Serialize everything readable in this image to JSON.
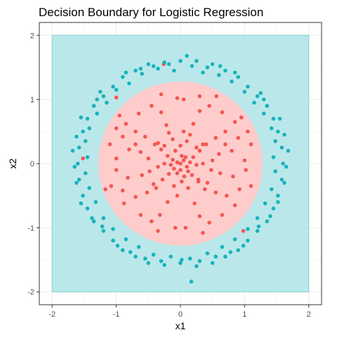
{
  "chart_data": {
    "type": "scatter",
    "title": "Decision Boundary for Logistic Regression",
    "xlabel": "x1",
    "ylabel": "x2",
    "xlim": [
      -2.2,
      2.2
    ],
    "ylim": [
      -2.2,
      2.2
    ],
    "x_ticks": [
      -2,
      -1,
      0,
      1,
      2
    ],
    "y_ticks": [
      -2,
      -1,
      0,
      1,
      2
    ],
    "x_tick_labels": [
      "-2",
      "-1",
      "0",
      "1",
      "2"
    ],
    "y_tick_labels": [
      "-2",
      "-1",
      "0",
      "1",
      "2"
    ],
    "grid": true,
    "legend": "none",
    "regions": [
      {
        "name": "class-0-region",
        "shape": "rectangle",
        "x": [
          -2,
          2
        ],
        "y": [
          -2,
          2
        ],
        "color": "#b2e5e8"
      },
      {
        "name": "class-1-region",
        "shape": "circle",
        "center": [
          0,
          0
        ],
        "radius": 1.28,
        "color": "#ffcccc"
      }
    ],
    "series": [
      {
        "color": "#f15854",
        "points": [
          [
            0.0,
            0.0
          ],
          [
            0.05,
            0.05
          ],
          [
            -0.05,
            0.02
          ],
          [
            0.1,
            -0.05
          ],
          [
            -0.1,
            -0.08
          ],
          [
            0.02,
            0.12
          ],
          [
            0.08,
            0.1
          ],
          [
            -0.12,
            0.06
          ],
          [
            0.15,
            0.02
          ],
          [
            -0.05,
            -0.15
          ],
          [
            0.0,
            -0.1
          ],
          [
            0.12,
            -0.12
          ],
          [
            -0.15,
            -0.02
          ],
          [
            0.2,
            0.1
          ],
          [
            -0.2,
            0.12
          ],
          [
            0.06,
            -0.2
          ],
          [
            -0.08,
            0.2
          ],
          [
            0.18,
            -0.18
          ],
          [
            -0.18,
            -0.16
          ],
          [
            0.25,
            -0.02
          ],
          [
            -0.25,
            0.0
          ],
          [
            0.0,
            0.28
          ],
          [
            0.02,
            -0.28
          ],
          [
            0.3,
            0.2
          ],
          [
            -0.3,
            0.22
          ],
          [
            0.28,
            -0.25
          ],
          [
            -0.28,
            -0.25
          ],
          [
            0.35,
            0.0
          ],
          [
            -0.35,
            -0.05
          ],
          [
            0.1,
            0.35
          ],
          [
            -0.12,
            0.38
          ],
          [
            0.12,
            -0.38
          ],
          [
            -0.1,
            -0.35
          ],
          [
            0.4,
            0.3
          ],
          [
            -0.4,
            0.3
          ],
          [
            0.42,
            -0.3
          ],
          [
            -0.42,
            -0.32
          ],
          [
            0.5,
            0.05
          ],
          [
            -0.5,
            0.08
          ],
          [
            0.05,
            0.5
          ],
          [
            -0.05,
            -0.5
          ],
          [
            0.55,
            0.4
          ],
          [
            -0.55,
            0.42
          ],
          [
            0.55,
            -0.45
          ],
          [
            -0.52,
            -0.45
          ],
          [
            0.6,
            0.15
          ],
          [
            -0.62,
            0.18
          ],
          [
            0.62,
            -0.15
          ],
          [
            -0.6,
            -0.18
          ],
          [
            0.2,
            0.62
          ],
          [
            -0.22,
            0.6
          ],
          [
            0.22,
            -0.62
          ],
          [
            -0.2,
            -0.6
          ],
          [
            0.7,
            0.5
          ],
          [
            -0.7,
            0.5
          ],
          [
            0.72,
            -0.5
          ],
          [
            -0.7,
            -0.52
          ],
          [
            0.8,
            0.2
          ],
          [
            -0.8,
            0.22
          ],
          [
            0.82,
            -0.2
          ],
          [
            -0.82,
            -0.22
          ],
          [
            0.3,
            0.82
          ],
          [
            -0.3,
            0.8
          ],
          [
            0.3,
            -0.82
          ],
          [
            -0.32,
            -0.8
          ],
          [
            0.9,
            0.4
          ],
          [
            -0.9,
            0.42
          ],
          [
            0.92,
            -0.4
          ],
          [
            -0.9,
            -0.42
          ],
          [
            0.45,
            0.9
          ],
          [
            -0.45,
            0.9
          ],
          [
            0.45,
            -0.92
          ],
          [
            -0.45,
            -0.9
          ],
          [
            1.0,
            0.05
          ],
          [
            -1.0,
            0.08
          ],
          [
            1.02,
            -0.1
          ],
          [
            -1.0,
            -0.1
          ],
          [
            0.05,
            1.0
          ],
          [
            -0.05,
            1.02
          ],
          [
            0.08,
            -1.0
          ],
          [
            -0.08,
            -1.0
          ],
          [
            0.65,
            0.8
          ],
          [
            -0.65,
            0.78
          ],
          [
            0.65,
            -0.8
          ],
          [
            -0.62,
            -0.8
          ],
          [
            0.85,
            0.65
          ],
          [
            -0.85,
            0.62
          ],
          [
            0.85,
            -0.65
          ],
          [
            -0.88,
            -0.62
          ],
          [
            1.1,
            0.3
          ],
          [
            -1.1,
            0.3
          ],
          [
            1.1,
            -0.35
          ],
          [
            -1.08,
            -0.35
          ],
          [
            0.3,
            1.05
          ],
          [
            -0.3,
            1.08
          ],
          [
            0.35,
            -1.08
          ],
          [
            -0.35,
            -1.05
          ],
          [
            0.7,
            0.3
          ],
          [
            -0.7,
            0.3
          ],
          [
            0.35,
            0.3
          ],
          [
            -0.35,
            0.32
          ],
          [
            0.38,
            -0.4
          ],
          [
            -0.38,
            -0.38
          ],
          [
            0.15,
            0.45
          ],
          [
            -0.18,
            0.48
          ],
          [
            0.48,
            -0.1
          ],
          [
            -0.48,
            -0.12
          ],
          [
            0.25,
            0.25
          ],
          [
            -0.25,
            0.28
          ],
          [
            0.28,
            -0.28
          ],
          [
            -1.17,
            -0.4
          ],
          [
            -1.52,
            0.08
          ],
          [
            -1.0,
            1.03
          ],
          [
            -0.26,
            1.55
          ],
          [
            0.98,
            -1.05
          ],
          [
            0.56,
            1.05
          ],
          [
            0.95,
            0.72
          ],
          [
            1.05,
            0.5
          ],
          [
            -0.95,
            0.75
          ],
          [
            -1.0,
            0.55
          ]
        ]
      },
      {
        "color": "#1ab3bc",
        "points": [
          [
            0.0,
            1.6
          ],
          [
            0.25,
            1.6
          ],
          [
            -0.25,
            1.58
          ],
          [
            0.5,
            1.55
          ],
          [
            -0.5,
            1.55
          ],
          [
            0.7,
            1.45
          ],
          [
            -0.7,
            1.45
          ],
          [
            0.9,
            1.35
          ],
          [
            -0.9,
            1.35
          ],
          [
            1.05,
            1.2
          ],
          [
            -1.05,
            1.2
          ],
          [
            1.2,
            1.05
          ],
          [
            -1.2,
            1.05
          ],
          [
            1.35,
            0.9
          ],
          [
            -1.35,
            0.9
          ],
          [
            1.45,
            0.7
          ],
          [
            -1.45,
            0.7
          ],
          [
            1.52,
            0.5
          ],
          [
            -1.52,
            0.5
          ],
          [
            1.58,
            0.25
          ],
          [
            -1.58,
            0.25
          ],
          [
            1.6,
            0.0
          ],
          [
            -1.6,
            0.0
          ],
          [
            1.58,
            -0.25
          ],
          [
            -1.58,
            -0.25
          ],
          [
            1.52,
            -0.5
          ],
          [
            -1.52,
            -0.5
          ],
          [
            1.45,
            -0.7
          ],
          [
            -1.45,
            -0.7
          ],
          [
            1.35,
            -0.9
          ],
          [
            -1.35,
            -0.9
          ],
          [
            1.2,
            -1.05
          ],
          [
            -1.2,
            -1.05
          ],
          [
            1.05,
            -1.2
          ],
          [
            -1.05,
            -1.2
          ],
          [
            0.9,
            -1.35
          ],
          [
            -0.9,
            -1.35
          ],
          [
            0.7,
            -1.45
          ],
          [
            -0.7,
            -1.45
          ],
          [
            0.5,
            -1.55
          ],
          [
            -0.5,
            -1.55
          ],
          [
            0.25,
            -1.6
          ],
          [
            -0.25,
            -1.58
          ],
          [
            0.0,
            -1.55
          ],
          [
            0.1,
            1.68
          ],
          [
            -0.1,
            1.45
          ],
          [
            0.35,
            1.42
          ],
          [
            -0.35,
            1.48
          ],
          [
            0.6,
            1.38
          ],
          [
            -0.6,
            1.4
          ],
          [
            0.8,
            1.28
          ],
          [
            -0.8,
            1.25
          ],
          [
            1.0,
            1.12
          ],
          [
            -1.0,
            1.15
          ],
          [
            1.15,
            0.95
          ],
          [
            -1.15,
            0.95
          ],
          [
            1.3,
            0.78
          ],
          [
            -1.3,
            0.78
          ],
          [
            1.42,
            0.55
          ],
          [
            -1.42,
            0.55
          ],
          [
            1.48,
            0.35
          ],
          [
            -1.48,
            0.35
          ],
          [
            1.45,
            0.1
          ],
          [
            -1.45,
            0.1
          ],
          [
            1.48,
            -0.12
          ],
          [
            -1.48,
            -0.15
          ],
          [
            1.42,
            -0.4
          ],
          [
            -1.42,
            -0.38
          ],
          [
            1.32,
            -0.62
          ],
          [
            -1.32,
            -0.6
          ],
          [
            1.2,
            -0.85
          ],
          [
            -1.2,
            -0.85
          ],
          [
            1.05,
            -1.02
          ],
          [
            -1.05,
            -1.02
          ],
          [
            0.85,
            -1.18
          ],
          [
            -0.85,
            -1.18
          ],
          [
            0.65,
            -1.3
          ],
          [
            -0.65,
            -1.3
          ],
          [
            0.42,
            -1.4
          ],
          [
            -0.42,
            -1.42
          ],
          [
            0.15,
            -1.48
          ],
          [
            -0.15,
            -1.45
          ],
          [
            0.18,
            1.52
          ],
          [
            -0.18,
            1.55
          ],
          [
            0.42,
            1.5
          ],
          [
            -0.42,
            1.52
          ],
          [
            0.62,
            1.52
          ],
          [
            -0.62,
            1.48
          ],
          [
            1.25,
            1.1
          ],
          [
            -1.25,
            1.12
          ],
          [
            1.62,
            0.45
          ],
          [
            -1.62,
            0.42
          ],
          [
            1.68,
            0.2
          ],
          [
            -1.68,
            0.2
          ],
          [
            1.65,
            -0.05
          ],
          [
            -1.65,
            -0.05
          ],
          [
            1.62,
            -0.3
          ],
          [
            -1.62,
            -0.3
          ],
          [
            1.52,
            -0.6
          ],
          [
            -1.55,
            -0.62
          ],
          [
            1.4,
            -0.82
          ],
          [
            -1.38,
            -0.85
          ],
          [
            1.22,
            -0.98
          ],
          [
            -1.22,
            -0.98
          ],
          [
            0.98,
            -1.28
          ],
          [
            -0.98,
            -1.28
          ],
          [
            0.78,
            -1.38
          ],
          [
            -0.78,
            -1.38
          ],
          [
            0.55,
            -1.45
          ],
          [
            -0.55,
            -1.48
          ],
          [
            0.3,
            -1.52
          ],
          [
            -0.3,
            -1.52
          ],
          [
            0.17,
            -1.84
          ],
          [
            0.02,
            -1.5
          ],
          [
            1.55,
            0.7
          ],
          [
            -1.55,
            0.72
          ],
          [
            1.3,
            1.0
          ],
          [
            -1.3,
            1.0
          ],
          [
            0.85,
            1.42
          ],
          [
            -0.85,
            1.42
          ]
        ]
      }
    ]
  }
}
